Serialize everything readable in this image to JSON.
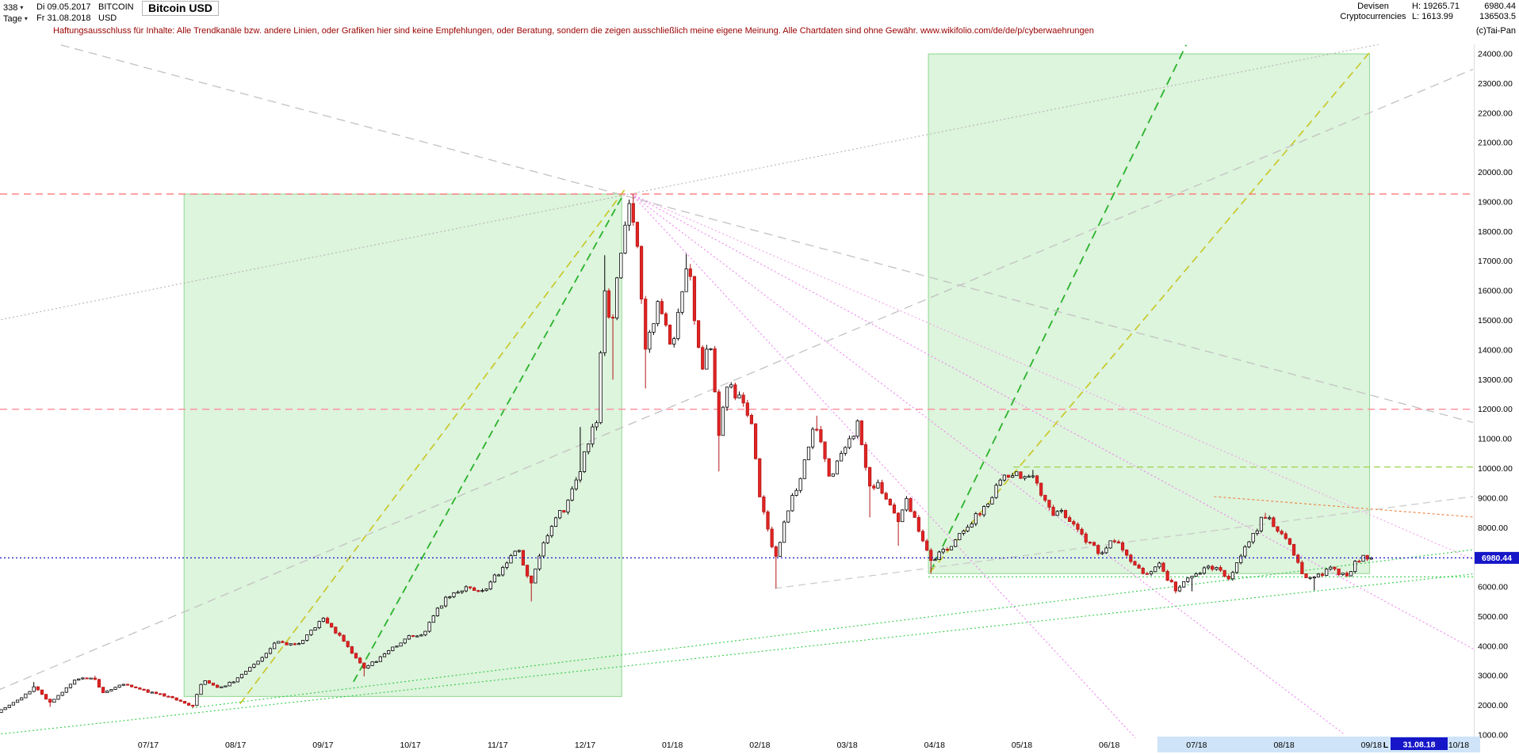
{
  "header": {
    "bars_count": "338",
    "period_unit": "Tage",
    "date_from": "Di 09.05.2017",
    "date_to": "Fr 31.08.2018",
    "symbol": "BITCOIN",
    "currency": "USD",
    "title": "Bitcoin USD",
    "market_line1": "Devisen",
    "market_line2": "Cryptocurrencies",
    "high": "H: 19265.71",
    "low": "L: 1613.99",
    "price": "6980.44",
    "volume": "136503.5",
    "copyright": "(c)Tai-Pan"
  },
  "icons": {
    "caret_down": "▾"
  },
  "disclaimer": {
    "text": "Haftungsausschluss für Inhalte: Alle Trendkanäle bzw. andere Linien, oder Grafiken hier sind keine Empfehlungen, oder Beratung, sondern die zeigen ausschließlich meine eigene Meinung. Alle Chartdaten sind ohne Gewähr.  ",
    "link": "www.wikifolio.com/de/de/p/cyberwaehrungen"
  },
  "chart_data": {
    "type": "candlestick",
    "title": "Bitcoin USD",
    "bars_total": 338,
    "t_unit": "months since 2017-05-01 (t=2 equals axis label 07/17)",
    "t_start": 0.27,
    "t_end": 16.0,
    "period_high": 19265.71,
    "period_low": 1613.99,
    "last_price": 6980.44,
    "y_axis": {
      "min": 1000,
      "max": 24000,
      "step": 1000
    },
    "x_axis": {
      "first_label_t": 2,
      "labels": [
        "07/17",
        "08/17",
        "09/17",
        "10/17",
        "11/17",
        "12/17",
        "01/18",
        "02/18",
        "03/18",
        "04/18",
        "05/18",
        "06/18",
        "07/18",
        "08/18",
        "09/18",
        "10/18"
      ]
    },
    "highlight": {
      "strip_from_t": 13.55,
      "strip_color": "#cfe4f8",
      "last_marker": "L",
      "last_date": "31.08.18"
    },
    "last_price_line": {
      "price": 6980.44,
      "label": "6980.44",
      "color": "#1616c8"
    },
    "up_candle": {
      "stroke": "#000000",
      "fill": "#ffffff"
    },
    "down_candle": {
      "stroke": "#b51616",
      "fill": "#e22424"
    },
    "anchors": [
      [
        0.27,
        1780,
        0,
        1613.99
      ],
      [
        0.5,
        2150,
        0,
        0
      ],
      [
        0.7,
        2630,
        2790,
        0
      ],
      [
        0.87,
        2060,
        0,
        1950
      ],
      [
        1.17,
        2870,
        0,
        0
      ],
      [
        1.37,
        2975,
        3000,
        0
      ],
      [
        1.47,
        2420,
        0,
        0
      ],
      [
        1.7,
        2705,
        0,
        0
      ],
      [
        1.97,
        2480,
        0,
        0
      ],
      [
        2.2,
        2330,
        0,
        0
      ],
      [
        2.5,
        1940,
        0,
        1914
      ],
      [
        2.63,
        2860,
        0,
        0
      ],
      [
        2.8,
        2580,
        0,
        0
      ],
      [
        3.0,
        2860,
        0,
        0
      ],
      [
        3.23,
        3430,
        0,
        0
      ],
      [
        3.47,
        4160,
        0,
        0
      ],
      [
        3.57,
        4085,
        0,
        0
      ],
      [
        3.7,
        3980,
        0,
        0
      ],
      [
        4.0,
        4920,
        4980,
        0
      ],
      [
        4.23,
        4230,
        0,
        0
      ],
      [
        4.47,
        3230,
        0,
        2980
      ],
      [
        4.8,
        3930,
        0,
        0
      ],
      [
        5.0,
        4340,
        0,
        0
      ],
      [
        5.13,
        4320,
        0,
        0
      ],
      [
        5.4,
        5640,
        0,
        0
      ],
      [
        5.67,
        6010,
        0,
        0
      ],
      [
        5.8,
        5730,
        0,
        0
      ],
      [
        6.0,
        6450,
        0,
        0
      ],
      [
        6.23,
        7440,
        0,
        0
      ],
      [
        6.37,
        5950,
        0,
        5510
      ],
      [
        6.6,
        8080,
        0,
        0
      ],
      [
        6.8,
        8755,
        0,
        0
      ],
      [
        6.93,
        9900,
        11400,
        0
      ],
      [
        7.13,
        11650,
        0,
        0
      ],
      [
        7.23,
        16000,
        17200,
        0
      ],
      [
        7.3,
        14600,
        0,
        13000
      ],
      [
        7.42,
        17700,
        0,
        0
      ],
      [
        7.53,
        19100,
        19265.71,
        0
      ],
      [
        7.63,
        16500,
        0,
        0
      ],
      [
        7.7,
        13800,
        0,
        12700
      ],
      [
        7.83,
        15800,
        0,
        0
      ],
      [
        8.0,
        14100,
        0,
        0
      ],
      [
        8.17,
        17150,
        17250,
        0
      ],
      [
        8.33,
        13300,
        0,
        0
      ],
      [
        8.43,
        14200,
        0,
        0
      ],
      [
        8.53,
        11200,
        0,
        9900
      ],
      [
        8.63,
        12900,
        0,
        0
      ],
      [
        8.9,
        11800,
        0,
        0
      ],
      [
        9.0,
        9100,
        0,
        0
      ],
      [
        9.17,
        6950,
        0,
        5950
      ],
      [
        9.33,
        8600,
        0,
        0
      ],
      [
        9.5,
        10100,
        0,
        0
      ],
      [
        9.63,
        11550,
        11780,
        0
      ],
      [
        9.8,
        9650,
        0,
        0
      ],
      [
        10.13,
        11500,
        11660,
        0
      ],
      [
        10.27,
        9250,
        0,
        8350
      ],
      [
        10.33,
        9600,
        0,
        0
      ],
      [
        10.57,
        8200,
        0,
        7390
      ],
      [
        10.67,
        8950,
        0,
        0
      ],
      [
        10.97,
        6850,
        0,
        6450
      ],
      [
        11.03,
        7020,
        0,
        0
      ],
      [
        11.37,
        7950,
        0,
        0
      ],
      [
        11.6,
        8870,
        0,
        0
      ],
      [
        11.77,
        9650,
        0,
        0
      ],
      [
        12.13,
        9850,
        9950,
        0
      ],
      [
        12.33,
        8450,
        0,
        0
      ],
      [
        12.43,
        8700,
        0,
        0
      ],
      [
        12.73,
        7550,
        0,
        0
      ],
      [
        12.9,
        7130,
        0,
        0
      ],
      [
        13.03,
        7650,
        0,
        0
      ],
      [
        13.3,
        6780,
        0,
        0
      ],
      [
        13.4,
        6300,
        0,
        0
      ],
      [
        13.57,
        6720,
        0,
        0
      ],
      [
        13.77,
        5880,
        0,
        5780
      ],
      [
        13.93,
        6400,
        0,
        5850
      ],
      [
        14.23,
        6700,
        0,
        0
      ],
      [
        14.37,
        6250,
        0,
        0
      ],
      [
        14.57,
        7380,
        0,
        0
      ],
      [
        14.77,
        8400,
        8500,
        0
      ],
      [
        15.0,
        7750,
        0,
        0
      ],
      [
        15.23,
        6300,
        0,
        0
      ],
      [
        15.33,
        6250,
        0,
        5880
      ],
      [
        15.53,
        6580,
        0,
        0
      ],
      [
        15.7,
        6370,
        0,
        0
      ],
      [
        15.9,
        7100,
        0,
        0
      ],
      [
        16.0,
        6980.44,
        0,
        0
      ]
    ],
    "boxes": [
      {
        "t1": 2.41,
        "p1": 2300,
        "t2": 7.42,
        "p2": 19265.71,
        "fill": "#ddf4dd",
        "stroke": "#90d890"
      },
      {
        "t1": 10.93,
        "p1": 6450,
        "t2": 15.98,
        "p2": 24000,
        "fill": "#ddf4dd",
        "stroke": "#90d890"
      }
    ],
    "h_lines": [
      {
        "price": 19265.71,
        "color": "#ff6a6a",
        "dash": "9,6",
        "w": 1.3
      },
      {
        "price": 12000,
        "color": "#ff8c9c",
        "dash": "9,6",
        "w": 1.3
      },
      {
        "price": 6340,
        "t1": 10.93,
        "color": "#2ecc44",
        "dash": "2,3",
        "w": 1.1
      },
      {
        "price": 10050,
        "t1": 11.9,
        "color": "#9ad44a",
        "dash": "8,5",
        "w": 1.2
      }
    ],
    "trend_lines": [
      {
        "t1": 3.05,
        "p1": 2050,
        "t2": 7.45,
        "p2": 19400,
        "color": "#c9c92a",
        "dash": "10,6",
        "w": 1.7
      },
      {
        "t1": 4.35,
        "p1": 2800,
        "t2": 7.44,
        "p2": 19260,
        "color": "#29b329",
        "dash": "10,6",
        "w": 1.8
      },
      {
        "t1": 10.95,
        "p1": 6500,
        "t2": 13.88,
        "p2": 24300,
        "color": "#29b329",
        "dash": "11,7",
        "w": 1.8
      },
      {
        "t1": 10.95,
        "p1": 6500,
        "t2": 15.98,
        "p2": 24050,
        "color": "#c9c92a",
        "dash": "10,6",
        "w": 1.7
      },
      {
        "t1": 7.53,
        "p1": 19265.71,
        "t2": 13.3,
        "p2": 900,
        "color": "#ee82ee",
        "dash": "2,3",
        "w": 1.1
      },
      {
        "t1": 7.53,
        "p1": 19265.71,
        "t2": 15.7,
        "p2": 1000,
        "color": "#ee82ee",
        "dash": "2,3",
        "w": 1.1
      },
      {
        "t1": 7.53,
        "p1": 19265.71,
        "t2": 17.42,
        "p2": 3500,
        "color": "#ee82ee",
        "dash": "2,3",
        "w": 1.1
      },
      {
        "t1": 7.53,
        "p1": 19265.71,
        "t2": 17.42,
        "p2": 6600,
        "color": "#f0a0e8",
        "dash": "2,3",
        "w": 1.1
      },
      {
        "t1": 1.0,
        "p1": 24300,
        "t2": 17.42,
        "p2": 11350,
        "color": "#c2c2c2",
        "dash": "11,7",
        "w": 1.3
      },
      {
        "t1": 0.27,
        "p1": 2500,
        "t2": 17.42,
        "p2": 23800,
        "color": "#c2c2c2",
        "dash": "11,7",
        "w": 1.3
      },
      {
        "t1": 0.27,
        "p1": 15000,
        "t2": 16.9,
        "p2": 24800,
        "color": "#b5b5b5",
        "dash": "2,3",
        "w": 1.1
      },
      {
        "t1": 9.17,
        "p1": 5950,
        "t2": 17.42,
        "p2": 9150,
        "color": "#c8c8c8",
        "dash": "9,6",
        "w": 1.2
      },
      {
        "t1": 0.27,
        "p1": 1020,
        "t2": 17.42,
        "p2": 6520,
        "color": "#2ecc44",
        "dash": "2,3",
        "w": 1.1
      },
      {
        "t1": 2.5,
        "p1": 1914,
        "t2": 17.42,
        "p2": 7350,
        "color": "#2ecc44",
        "dash": "2,3",
        "w": 1.1
      },
      {
        "t1": 14.2,
        "p1": 9050,
        "t2": 17.42,
        "p2": 8300,
        "color": "#ef8040",
        "dash": "3,3",
        "w": 1.1
      }
    ]
  }
}
